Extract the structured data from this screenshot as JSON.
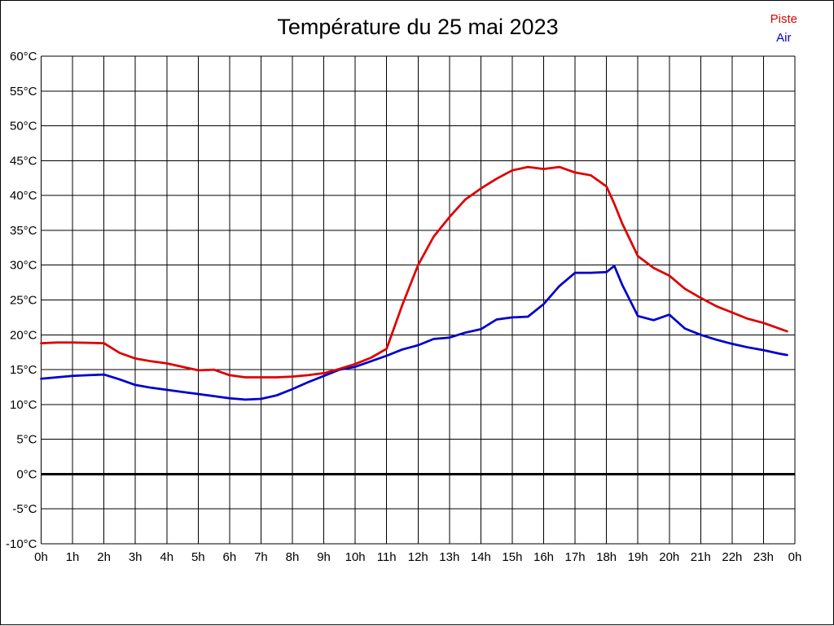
{
  "title": "Température du 25 mai 2023",
  "legend": [
    {
      "label": "Piste",
      "color": "#dd0000"
    },
    {
      "label": "Air",
      "color": "#0000cc"
    }
  ],
  "chart_data": {
    "type": "line",
    "title": "Température du 25 mai 2023",
    "xlabel": "",
    "ylabel": "",
    "xlim": [
      0,
      24
    ],
    "ylim": [
      -10,
      60
    ],
    "grid": true,
    "grid_color": "#000000",
    "zero_line_bold": true,
    "legend_position": "top-right",
    "x_tick_labels": [
      "0h",
      "1h",
      "2h",
      "3h",
      "4h",
      "5h",
      "6h",
      "7h",
      "8h",
      "9h",
      "10h",
      "11h",
      "12h",
      "13h",
      "14h",
      "15h",
      "16h",
      "17h",
      "18h",
      "19h",
      "20h",
      "21h",
      "22h",
      "23h",
      "0h"
    ],
    "y_tick_labels": [
      "60°C",
      "55°C",
      "50°C",
      "45°C",
      "40°C",
      "35°C",
      "30°C",
      "25°C",
      "20°C",
      "15°C",
      "10°C",
      "5°C",
      "0°C",
      "-5°C",
      "-10°C"
    ],
    "y_tick_values": [
      60,
      55,
      50,
      45,
      40,
      35,
      30,
      25,
      20,
      15,
      10,
      5,
      0,
      -5,
      -10
    ],
    "x": [
      0,
      0.5,
      1,
      1.5,
      2,
      2.5,
      3,
      3.5,
      4,
      4.5,
      5,
      5.5,
      6,
      6.5,
      7,
      7.5,
      8,
      8.5,
      9,
      9.5,
      10,
      10.5,
      11,
      11.5,
      12,
      12.5,
      13,
      13.5,
      14,
      14.5,
      15,
      15.5,
      16,
      16.5,
      17,
      17.5,
      18,
      18.25,
      18.5,
      19,
      19.5,
      20,
      20.5,
      21,
      21.5,
      22,
      22.5,
      23,
      23.5,
      23.75
    ],
    "series": [
      {
        "name": "Piste",
        "color": "#dd0000",
        "values": [
          18.8,
          18.9,
          18.9,
          18.85,
          18.8,
          17.4,
          16.6,
          16.2,
          15.9,
          15.4,
          14.9,
          15.0,
          14.2,
          13.9,
          13.9,
          13.9,
          14.0,
          14.2,
          14.5,
          15.1,
          15.8,
          16.7,
          18.0,
          24.3,
          30.0,
          34.1,
          36.9,
          39.4,
          41.0,
          42.4,
          43.6,
          44.1,
          43.8,
          44.1,
          43.3,
          42.9,
          41.3,
          38.8,
          36.0,
          31.3,
          29.6,
          28.5,
          26.6,
          25.3,
          24.1,
          23.2,
          22.3,
          21.7,
          20.9,
          20.5
        ]
      },
      {
        "name": "Air",
        "color": "#0000cc",
        "values": [
          13.7,
          13.9,
          14.1,
          14.2,
          14.3,
          13.6,
          12.8,
          12.4,
          12.1,
          11.8,
          11.5,
          11.2,
          10.9,
          10.7,
          10.8,
          11.3,
          12.2,
          13.2,
          14.1,
          15.0,
          15.4,
          16.2,
          17.0,
          17.9,
          18.5,
          19.4,
          19.6,
          20.3,
          20.8,
          22.2,
          22.5,
          22.6,
          24.4,
          27.0,
          28.9,
          28.9,
          29.0,
          29.9,
          27.2,
          22.7,
          22.1,
          22.9,
          20.9,
          20.0,
          19.3,
          18.7,
          18.2,
          17.8,
          17.3,
          17.1
        ]
      }
    ]
  }
}
